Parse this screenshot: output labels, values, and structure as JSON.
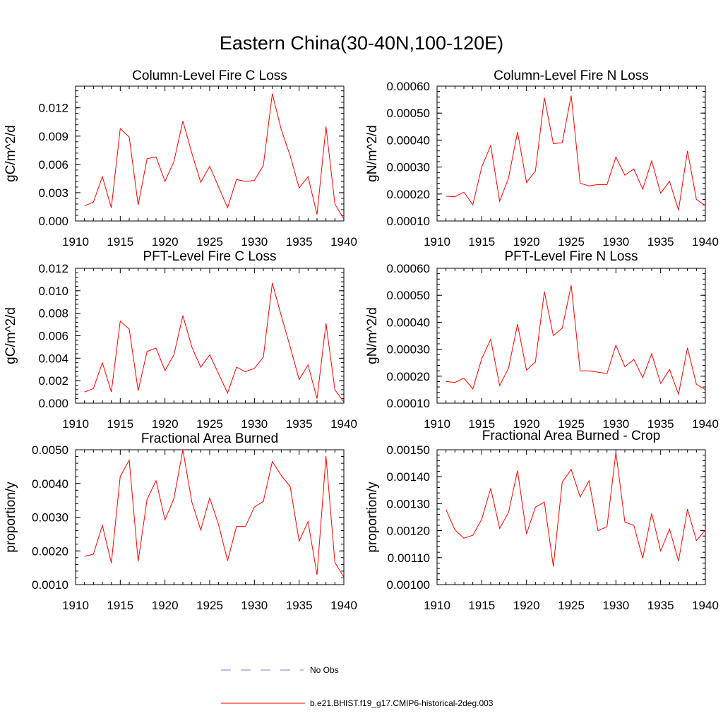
{
  "title": "Eastern China(30-40N,100-120E)",
  "colors": {
    "model_line": "#ff0000",
    "obs_line": "#7b7bd6",
    "axis": "#000000"
  },
  "legend": [
    {
      "label": "No Obs",
      "style": "dashed",
      "color": "#7b7bd6"
    },
    {
      "label": "b.e21.BHIST.f19_g17.CMIP6-historical-2deg.003",
      "style": "solid",
      "color": "#ff0000"
    }
  ],
  "chart_data": [
    {
      "type": "line",
      "title": "Column-Level Fire C Loss",
      "ylabel": "gC/m^2/d",
      "xlim": [
        1910,
        1940
      ],
      "ylim": [
        0,
        0.0143
      ],
      "xticks": [
        "1910",
        "1915",
        "1920",
        "1925",
        "1930",
        "1935",
        "1940"
      ],
      "yticks": [
        "0.000",
        "0.003",
        "0.006",
        "0.009",
        "0.012"
      ],
      "x": [
        1911,
        1912,
        1913,
        1914,
        1915,
        1916,
        1917,
        1918,
        1919,
        1920,
        1921,
        1922,
        1923,
        1924,
        1925,
        1926,
        1927,
        1928,
        1929,
        1930,
        1931,
        1932,
        1933,
        1934,
        1935,
        1936,
        1937,
        1938,
        1939,
        1940
      ],
      "series": [
        {
          "values": [
            0.0016,
            0.002,
            0.0047,
            0.0014,
            0.0098,
            0.0089,
            0.0017,
            0.0066,
            0.0068,
            0.0042,
            0.0063,
            0.0106,
            0.0072,
            0.0041,
            0.0058,
            0.0036,
            0.0014,
            0.0044,
            0.0042,
            0.0043,
            0.0059,
            0.0135,
            0.0097,
            0.0069,
            0.0035,
            0.0047,
            0.0007,
            0.01,
            0.0018,
            0.0002
          ]
        }
      ]
    },
    {
      "type": "line",
      "title": "Column-Level Fire N Loss",
      "ylabel": "gN/m^2/d",
      "xlim": [
        1910,
        1940
      ],
      "ylim": [
        0.0001,
        0.0006
      ],
      "xticks": [
        "1910",
        "1915",
        "1920",
        "1925",
        "1930",
        "1935",
        "1940"
      ],
      "yticks": [
        "0.00010",
        "0.00020",
        "0.00030",
        "0.00040",
        "0.00050",
        "0.00060"
      ],
      "x": [
        1911,
        1912,
        1913,
        1914,
        1915,
        1916,
        1917,
        1918,
        1919,
        1920,
        1921,
        1922,
        1923,
        1924,
        1925,
        1926,
        1927,
        1928,
        1929,
        1930,
        1931,
        1932,
        1933,
        1934,
        1935,
        1936,
        1937,
        1938,
        1939,
        1940
      ],
      "series": [
        {
          "values": [
            0.000192,
            0.00019,
            0.000207,
            0.00016,
            0.0003,
            0.00038,
            0.000173,
            0.00026,
            0.00043,
            0.000243,
            0.000285,
            0.000557,
            0.000387,
            0.00039,
            0.000565,
            0.00024,
            0.00023,
            0.000235,
            0.000235,
            0.000337,
            0.00027,
            0.000293,
            0.000218,
            0.000323,
            0.000203,
            0.000247,
            0.00014,
            0.00036,
            0.00018,
            0.000157
          ]
        }
      ]
    },
    {
      "type": "line",
      "title": "PFT-Level Fire C Loss",
      "ylabel": "gC/m^2/d",
      "xlim": [
        1910,
        1940
      ],
      "ylim": [
        0,
        0.012
      ],
      "xticks": [
        "1910",
        "1915",
        "1920",
        "1925",
        "1930",
        "1935",
        "1940"
      ],
      "yticks": [
        "0.000",
        "0.002",
        "0.004",
        "0.006",
        "0.008",
        "0.010",
        "0.012"
      ],
      "x": [
        1911,
        1912,
        1913,
        1914,
        1915,
        1916,
        1917,
        1918,
        1919,
        1920,
        1921,
        1922,
        1923,
        1924,
        1925,
        1926,
        1927,
        1928,
        1929,
        1930,
        1931,
        1932,
        1933,
        1934,
        1935,
        1936,
        1937,
        1938,
        1939,
        1940
      ],
      "series": [
        {
          "values": [
            0.001,
            0.0013,
            0.0036,
            0.001,
            0.0073,
            0.0066,
            0.0011,
            0.0046,
            0.0049,
            0.0029,
            0.0043,
            0.0078,
            0.005,
            0.0032,
            0.0043,
            0.0026,
            0.0009,
            0.0032,
            0.0028,
            0.0031,
            0.0041,
            0.0107,
            0.0078,
            0.005,
            0.0021,
            0.0034,
            0.0004,
            0.0071,
            0.0012,
            0.0001
          ]
        }
      ]
    },
    {
      "type": "line",
      "title": "PFT-Level Fire N Loss",
      "ylabel": "gN/m^2/d",
      "xlim": [
        1910,
        1940
      ],
      "ylim": [
        0.0001,
        0.0006
      ],
      "xticks": [
        "1910",
        "1915",
        "1920",
        "1925",
        "1930",
        "1935",
        "1940"
      ],
      "yticks": [
        "0.00010",
        "0.00020",
        "0.00030",
        "0.00040",
        "0.00050",
        "0.00060"
      ],
      "x": [
        1911,
        1912,
        1913,
        1914,
        1915,
        1916,
        1917,
        1918,
        1919,
        1920,
        1921,
        1922,
        1923,
        1924,
        1925,
        1926,
        1927,
        1928,
        1929,
        1930,
        1931,
        1932,
        1933,
        1934,
        1935,
        1936,
        1937,
        1938,
        1939,
        1940
      ],
      "series": [
        {
          "values": [
            0.00018,
            0.000177,
            0.000193,
            0.000153,
            0.000265,
            0.000337,
            0.000165,
            0.00023,
            0.000393,
            0.000222,
            0.000253,
            0.000513,
            0.00035,
            0.000378,
            0.000537,
            0.00022,
            0.00022,
            0.000215,
            0.00021,
            0.000315,
            0.000235,
            0.000262,
            0.000195,
            0.000283,
            0.000173,
            0.000225,
            0.000133,
            0.000305,
            0.00017,
            0.00015
          ]
        }
      ]
    },
    {
      "type": "line",
      "title": "Fractional Area Burned",
      "ylabel": "proportion/y",
      "xlim": [
        1910,
        1940
      ],
      "ylim": [
        0.001,
        0.005
      ],
      "xticks": [
        "1910",
        "1915",
        "1920",
        "1925",
        "1930",
        "1935",
        "1940"
      ],
      "yticks": [
        "0.0010",
        "0.0020",
        "0.0030",
        "0.0040",
        "0.0050"
      ],
      "x": [
        1911,
        1912,
        1913,
        1914,
        1915,
        1916,
        1917,
        1918,
        1919,
        1920,
        1921,
        1922,
        1923,
        1924,
        1925,
        1926,
        1927,
        1928,
        1929,
        1930,
        1931,
        1932,
        1933,
        1934,
        1935,
        1936,
        1937,
        1938,
        1939,
        1940
      ],
      "series": [
        {
          "values": [
            0.00184,
            0.0019,
            0.00276,
            0.00164,
            0.00421,
            0.00469,
            0.00169,
            0.00353,
            0.00408,
            0.00292,
            0.00355,
            0.005,
            0.00345,
            0.00262,
            0.00357,
            0.00277,
            0.00171,
            0.00273,
            0.00273,
            0.0033,
            0.00347,
            0.00465,
            0.00424,
            0.00391,
            0.00229,
            0.00287,
            0.00129,
            0.00481,
            0.00166,
            0.00122
          ]
        }
      ]
    },
    {
      "type": "line",
      "title": "Fractional Area Burned - Crop",
      "ylabel": "proportion/y",
      "xlim": [
        1910,
        1940
      ],
      "ylim": [
        0.001,
        0.0015
      ],
      "xticks": [
        "1910",
        "1915",
        "1920",
        "1925",
        "1930",
        "1935",
        "1940"
      ],
      "yticks": [
        "0.00100",
        "0.00110",
        "0.00120",
        "0.00130",
        "0.00140",
        "0.00150"
      ],
      "x": [
        1911,
        1912,
        1913,
        1914,
        1915,
        1916,
        1917,
        1918,
        1919,
        1920,
        1921,
        1922,
        1923,
        1924,
        1925,
        1926,
        1927,
        1928,
        1929,
        1930,
        1931,
        1932,
        1933,
        1934,
        1935,
        1936,
        1937,
        1938,
        1939,
        1940
      ],
      "series": [
        {
          "values": [
            0.001278,
            0.001203,
            0.001172,
            0.001183,
            0.001243,
            0.001357,
            0.001208,
            0.001268,
            0.001423,
            0.001188,
            0.001287,
            0.001306,
            0.001067,
            0.00138,
            0.001427,
            0.001325,
            0.001385,
            0.0012,
            0.001215,
            0.001491,
            0.001232,
            0.00122,
            0.001098,
            0.001264,
            0.001125,
            0.001206,
            0.001087,
            0.00128,
            0.001163,
            0.001202
          ]
        }
      ]
    }
  ]
}
